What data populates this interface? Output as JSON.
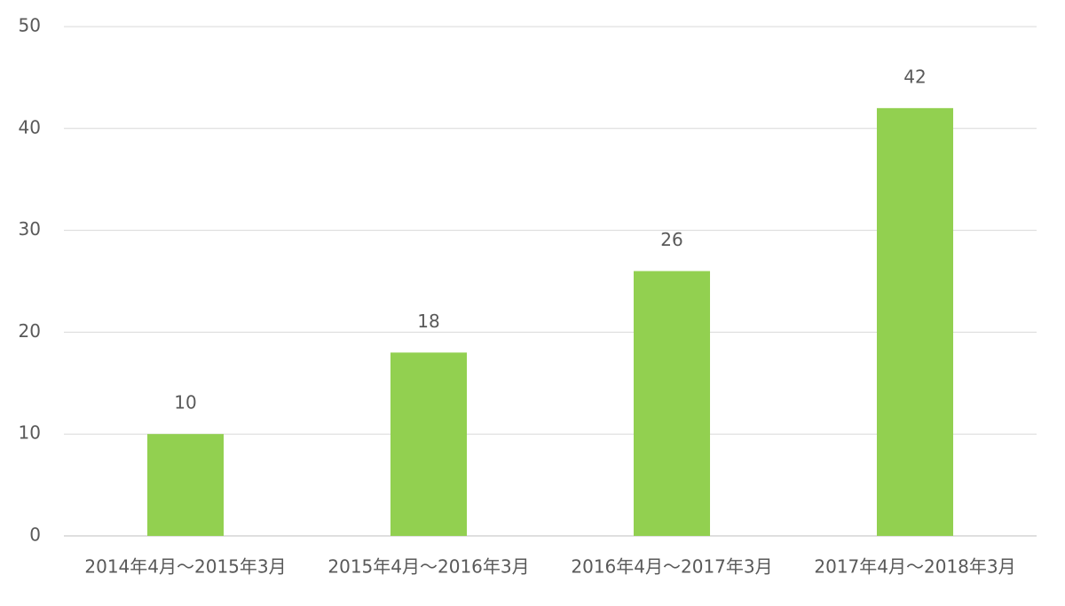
{
  "chart_data": {
    "type": "bar",
    "categories": [
      "2014年4月～2015年3月",
      "2015年4月～2016年3月",
      "2016年4月～2017年3月",
      "2017年4月～2018年3月"
    ],
    "values": [
      10,
      18,
      26,
      42
    ],
    "color": "#92d050",
    "ylim": [
      0,
      50
    ],
    "yticks": [
      0,
      10,
      20,
      30,
      40,
      50
    ],
    "grid": true
  }
}
